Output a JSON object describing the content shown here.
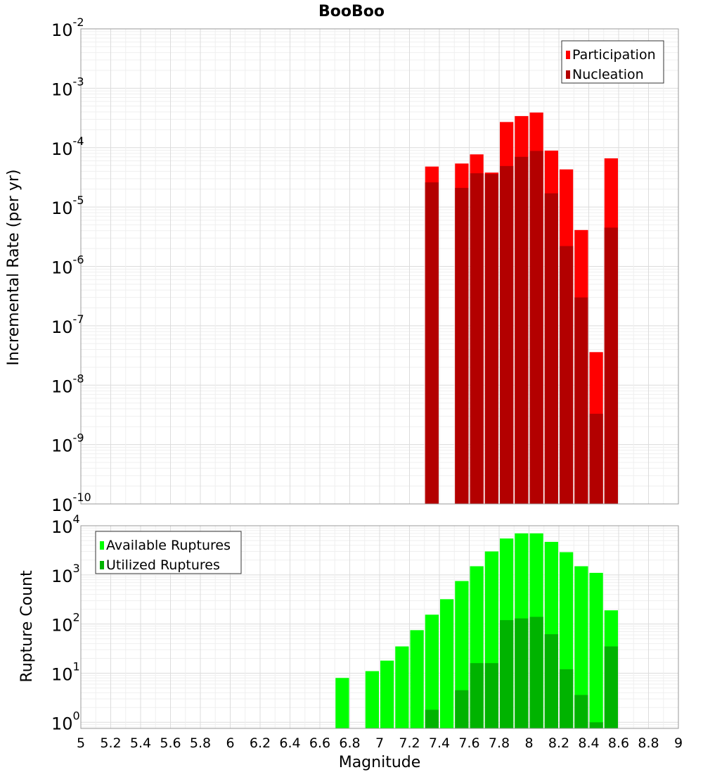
{
  "chart_data": [
    {
      "type": "bar",
      "title": "BooBoo",
      "xlabel": "",
      "ylabel": "Incremental Rate (per yr)",
      "y_scale": "log",
      "ylim": [
        1e-10,
        0.01
      ],
      "xlim": [
        5,
        9
      ],
      "grid": true,
      "legend_position": "top-right",
      "bar_style": "overlay",
      "x": [
        7.35,
        7.55,
        7.65,
        7.75,
        7.85,
        7.95,
        8.05,
        8.15,
        8.25,
        8.35,
        8.45,
        8.55
      ],
      "series": [
        {
          "name": "Participation",
          "color": "#ff0000",
          "values": [
            4.8e-05,
            5.4e-05,
            7.7e-05,
            3.8e-05,
            0.00027,
            0.00034,
            0.00039,
            8.9e-05,
            4.3e-05,
            4.1e-06,
            3.6e-08,
            6.6e-05
          ]
        },
        {
          "name": "Nucleation",
          "color": "#b30000",
          "values": [
            2.6e-05,
            2.1e-05,
            3.7e-05,
            3.6e-05,
            4.9e-05,
            7e-05,
            8.8e-05,
            1.7e-05,
            2.2e-06,
            3e-07,
            3.3e-09,
            4.5e-06
          ]
        }
      ],
      "y_tick_labels": [
        {
          "base": "10",
          "exp": "-10"
        },
        {
          "base": "10",
          "exp": "-9"
        },
        {
          "base": "10",
          "exp": "-8"
        },
        {
          "base": "10",
          "exp": "-7"
        },
        {
          "base": "10",
          "exp": "-6"
        },
        {
          "base": "10",
          "exp": "-5"
        },
        {
          "base": "10",
          "exp": "-4"
        },
        {
          "base": "10",
          "exp": "-3"
        },
        {
          "base": "10",
          "exp": "-2"
        }
      ]
    },
    {
      "type": "bar",
      "title": "",
      "xlabel": "Magnitude",
      "ylabel": "Rupture Count",
      "y_scale": "log",
      "ylim": [
        0.75,
        10000
      ],
      "xlim": [
        5,
        9
      ],
      "grid": true,
      "legend_position": "top-left",
      "bar_style": "overlay",
      "x": [
        6.75,
        6.95,
        7.05,
        7.15,
        7.25,
        7.35,
        7.45,
        7.55,
        7.65,
        7.75,
        7.85,
        7.95,
        8.05,
        8.15,
        8.25,
        8.35,
        8.45,
        8.55
      ],
      "series": [
        {
          "name": "Available Ruptures",
          "color": "#00ff00",
          "values": [
            8,
            11,
            18,
            35,
            75,
            155,
            320,
            750,
            1500,
            3000,
            5500,
            7000,
            7000,
            4700,
            2900,
            1500,
            1100,
            190
          ]
        },
        {
          "name": "Utilized Ruptures",
          "color": "#00b300",
          "values": [
            null,
            null,
            null,
            null,
            null,
            1.8,
            null,
            4.5,
            16,
            16,
            120,
            130,
            140,
            62,
            12,
            3.6,
            1.0,
            35
          ]
        }
      ],
      "y_tick_labels": [
        {
          "base": "10",
          "exp": "0"
        },
        {
          "base": "10",
          "exp": "1"
        },
        {
          "base": "10",
          "exp": "2"
        },
        {
          "base": "10",
          "exp": "3"
        },
        {
          "base": "10",
          "exp": "4"
        }
      ],
      "x_tick_labels": [
        "5",
        "5.2",
        "5.4",
        "5.6",
        "5.8",
        "6",
        "6.2",
        "6.4",
        "6.6",
        "6.8",
        "7",
        "7.2",
        "7.4",
        "7.6",
        "7.8",
        "8",
        "8.2",
        "8.4",
        "8.6",
        "8.8",
        "9"
      ]
    }
  ]
}
